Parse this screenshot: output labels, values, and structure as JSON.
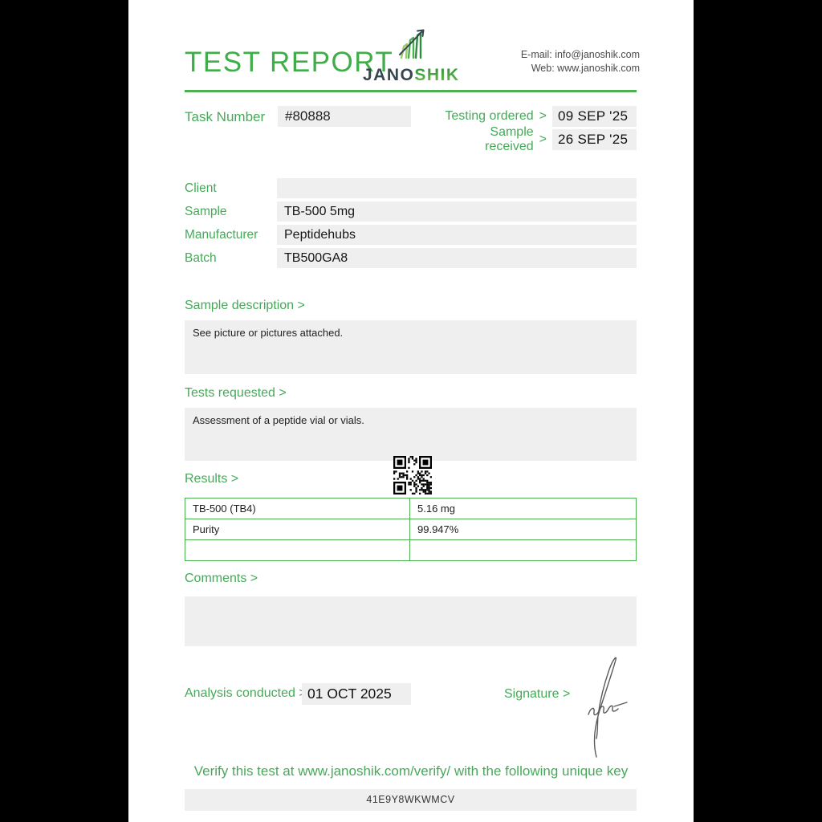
{
  "header": {
    "title": "TEST REPORT",
    "logo_dark": "JANO",
    "logo_green": "SHIK",
    "email_label": "E-mail:",
    "email_value": "info@janoshik.com",
    "web_label": "Web:",
    "web_value": "www.janoshik.com"
  },
  "task": {
    "label": "Task Number",
    "number": "#80888",
    "arrow": ">",
    "testing_ordered_label": "Testing ordered",
    "testing_ordered_value": "09 SEP '25",
    "sample_received_label": "Sample received",
    "sample_received_value": "26 SEP '25"
  },
  "info_fields": [
    {
      "label": "Client",
      "value": ""
    },
    {
      "label": "Sample",
      "value": "TB-500 5mg"
    },
    {
      "label": "Manufacturer",
      "value": "Peptidehubs"
    },
    {
      "label": "Batch",
      "value": "TB500GA8"
    }
  ],
  "sections": {
    "sample_description_heading": "Sample description >",
    "sample_description_body": "See picture or pictures attached.",
    "tests_requested_heading": "Tests requested >",
    "tests_requested_body": "Assessment of a peptide vial or vials.",
    "results_heading": "Results >",
    "comments_heading": "Comments >",
    "comments_body": ""
  },
  "results_table": {
    "rows": [
      {
        "name": "TB-500 (TB4)",
        "value": "5.16 mg"
      },
      {
        "name": "Purity",
        "value": "99.947%"
      },
      {
        "name": "",
        "value": ""
      }
    ]
  },
  "footer": {
    "analysis_label": "Analysis conducted >",
    "analysis_date": "01 OCT 2025",
    "signature_label": "Signature >",
    "verify_text": "Verify this test at www.janoshik.com/verify/ with the following unique key",
    "unique_key": "41E9Y8WKWMCV"
  },
  "colors": {
    "green": "#45aa58",
    "title_green": "#3fae49",
    "box_gray": "#efefef",
    "table_green": "#4caf50",
    "logo_dark": "#37474f"
  }
}
